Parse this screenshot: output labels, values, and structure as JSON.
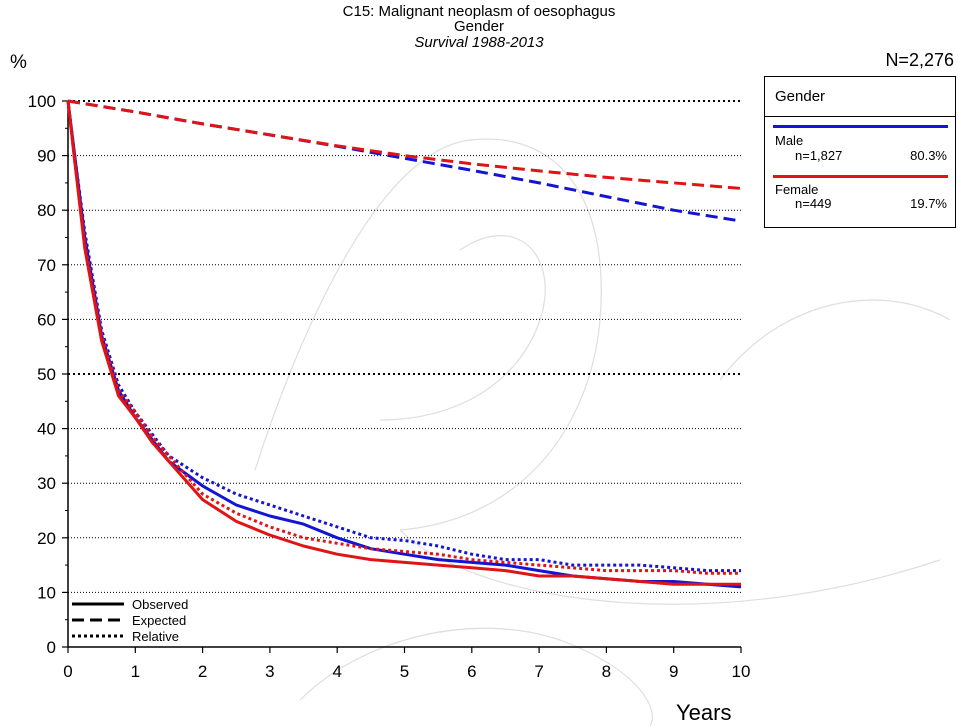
{
  "title": "C15: Malignant neoplasm of oesophagus",
  "subtitle": "Gender",
  "subtitle2": "Survival 1988-2013",
  "y_unit": "%",
  "x_label": "Years",
  "total_n": "N=2,276",
  "legend": {
    "heading": "Gender",
    "entries": [
      {
        "name": "Male",
        "n": "n=1,827",
        "pct": "80.3%",
        "color": "#1414d4"
      },
      {
        "name": "Female",
        "n": "n=449",
        "pct": "19.7%",
        "color": "#e01414"
      }
    ]
  },
  "line_style_legend": [
    "Observed",
    "Expected",
    "Relative"
  ],
  "chart_data": {
    "type": "line",
    "xlabel": "Years",
    "ylabel": "%",
    "xlim": [
      0,
      10
    ],
    "ylim": [
      0,
      100
    ],
    "x_ticks": [
      "0",
      "1",
      "2",
      "3",
      "4",
      "5",
      "6",
      "7",
      "8",
      "9",
      "10"
    ],
    "y_ticks": [
      "0",
      "10",
      "20",
      "30",
      "40",
      "50",
      "60",
      "70",
      "80",
      "90",
      "100"
    ],
    "grid": "horizontal dotted",
    "legend_position": "right",
    "series": [
      {
        "name": "Male",
        "style": "Observed",
        "color": "#1414d4",
        "x": [
          0,
          0.1,
          0.25,
          0.5,
          0.75,
          1,
          1.25,
          1.5,
          2,
          2.5,
          3,
          3.5,
          4,
          4.5,
          5,
          5.5,
          6,
          6.5,
          7,
          7.5,
          8,
          8.5,
          9,
          9.5,
          10
        ],
        "y": [
          100,
          90,
          75,
          57,
          47,
          42,
          38,
          34,
          29.5,
          26,
          24,
          22.5,
          20,
          18,
          17,
          16,
          15.5,
          15,
          14,
          13,
          12.5,
          12,
          12,
          11.5,
          11
        ]
      },
      {
        "name": "Male",
        "style": "Expected",
        "color": "#1414d4",
        "x": [
          0,
          1,
          2,
          3,
          4,
          5,
          6,
          7,
          8,
          9,
          10
        ],
        "y": [
          100,
          98,
          95.8,
          93.8,
          91.7,
          89.5,
          87.3,
          85,
          82.5,
          80,
          78
        ]
      },
      {
        "name": "Male",
        "style": "Relative",
        "color": "#1414d4",
        "x": [
          0,
          0.1,
          0.25,
          0.5,
          0.75,
          1,
          1.25,
          1.5,
          2,
          2.5,
          3,
          3.5,
          4,
          4.5,
          5,
          5.5,
          6,
          6.5,
          7,
          7.5,
          8,
          8.5,
          9,
          9.5,
          10
        ],
        "y": [
          100,
          90,
          76,
          58,
          48,
          43,
          39,
          35,
          31,
          28,
          26,
          24,
          22,
          20,
          19.5,
          18.5,
          17,
          16,
          16,
          15,
          15,
          15,
          14.5,
          14,
          14
        ]
      },
      {
        "name": "Female",
        "style": "Observed",
        "color": "#e01414",
        "x": [
          0,
          0.1,
          0.25,
          0.5,
          0.75,
          1,
          1.25,
          1.5,
          2,
          2.5,
          3,
          3.5,
          4,
          4.5,
          5,
          5.5,
          6,
          6.5,
          7,
          7.5,
          8,
          8.5,
          9,
          9.5,
          10
        ],
        "y": [
          100,
          89,
          73,
          56,
          46,
          42,
          37.5,
          34,
          27,
          23,
          20.5,
          18.5,
          17,
          16,
          15.5,
          15,
          14.5,
          14,
          13,
          13,
          12.5,
          12,
          11.5,
          11.5,
          11.5
        ]
      },
      {
        "name": "Female",
        "style": "Expected",
        "color": "#e01414",
        "x": [
          0,
          1,
          2,
          3,
          4,
          5,
          6,
          7,
          8,
          9,
          10
        ],
        "y": [
          100,
          98,
          95.8,
          93.8,
          91.8,
          90,
          88.5,
          87.2,
          86,
          85,
          84
        ]
      },
      {
        "name": "Female",
        "style": "Relative",
        "color": "#e01414",
        "x": [
          0,
          0.1,
          0.25,
          0.5,
          0.75,
          1,
          1.25,
          1.5,
          2,
          2.5,
          3,
          3.5,
          4,
          4.5,
          5,
          5.5,
          6,
          6.5,
          7,
          7.5,
          8,
          8.5,
          9,
          9.5,
          10
        ],
        "y": [
          100,
          89,
          74,
          57,
          47,
          43,
          38.5,
          35,
          28,
          24.5,
          22,
          20,
          19,
          18,
          17.5,
          17,
          16,
          15.5,
          15,
          14.5,
          14,
          14,
          14,
          13.5,
          13.5
        ]
      }
    ]
  }
}
